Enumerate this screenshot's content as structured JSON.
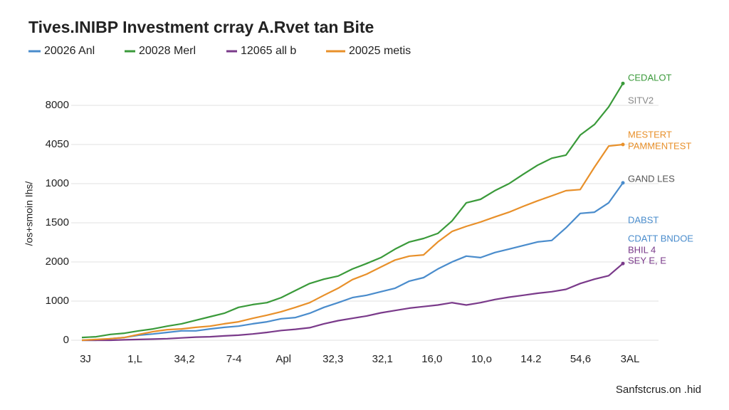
{
  "chart_data": {
    "type": "line",
    "title": "Tives.INIBP Investment crray A.Rvet tan Bite",
    "y_axis_label": "/os+smoin Ihs/",
    "footer": "Sanfstcrus.on .hid",
    "y_labels": [
      "0",
      "1000",
      "2000",
      "1500",
      "1000",
      "4050",
      "8000"
    ],
    "x_labels": [
      "3J",
      "1,L",
      "34,2",
      "7-4",
      "Apl",
      "32,3",
      "32,1",
      "16,0",
      "10,o",
      "14.2",
      "54,6",
      "3AL"
    ],
    "ylim": [
      0,
      7000
    ],
    "grid": true,
    "series": [
      {
        "name": "20026 Anl",
        "color": "#4a8ccc",
        "values": [
          0,
          0,
          40,
          70,
          130,
          160,
          200,
          240,
          240,
          290,
          330,
          360,
          420,
          470,
          550,
          580,
          690,
          840,
          960,
          1090,
          1150,
          1240,
          1330,
          1510,
          1600,
          1820,
          2000,
          2150,
          2110,
          2240,
          2330,
          2420,
          2510,
          2550,
          2870,
          3240,
          3270,
          3510,
          4020
        ]
      },
      {
        "name": "20028 Merl",
        "color": "#3a9a3a",
        "values": [
          70,
          90,
          150,
          180,
          240,
          290,
          360,
          420,
          510,
          600,
          690,
          840,
          910,
          960,
          1090,
          1270,
          1450,
          1560,
          1640,
          1820,
          1960,
          2110,
          2330,
          2510,
          2600,
          2730,
          3050,
          3510,
          3600,
          3820,
          4000,
          4240,
          4470,
          4650,
          4730,
          5240,
          5510,
          5960,
          6560
        ]
      },
      {
        "name": "12065 all b",
        "color": "#7a3a8a",
        "values": [
          0,
          0,
          0,
          10,
          20,
          30,
          40,
          60,
          80,
          90,
          110,
          130,
          160,
          200,
          250,
          280,
          320,
          420,
          500,
          560,
          620,
          700,
          760,
          820,
          860,
          900,
          960,
          900,
          960,
          1040,
          1100,
          1150,
          1200,
          1240,
          1300,
          1450,
          1560,
          1650,
          1960
        ]
      },
      {
        "name": "20025 metis",
        "color": "#e8902a",
        "values": [
          0,
          20,
          40,
          70,
          150,
          220,
          270,
          290,
          330,
          360,
          420,
          470,
          560,
          640,
          730,
          840,
          960,
          1150,
          1330,
          1550,
          1690,
          1870,
          2050,
          2150,
          2180,
          2510,
          2780,
          2910,
          3020,
          3150,
          3270,
          3420,
          3560,
          3690,
          3820,
          3850,
          4420,
          4960,
          5000
        ]
      }
    ],
    "annotations": [
      {
        "text": "CEDALOT",
        "color": "#3a9a3a"
      },
      {
        "text": "SITV2",
        "color": "#888888"
      },
      {
        "text": "MESTERT",
        "color": "#e8902a"
      },
      {
        "text": "PAMMENTEST",
        "color": "#e8902a"
      },
      {
        "text": "GAND LES",
        "color": "#555555"
      },
      {
        "text": "DABST",
        "color": "#4a8ccc"
      },
      {
        "text": "CDATT BNDOE",
        "color": "#4a8ccc"
      },
      {
        "text": "BHIL 4",
        "color": "#7a3a8a"
      },
      {
        "text": "SEY E, E",
        "color": "#7a3a8a"
      }
    ]
  }
}
